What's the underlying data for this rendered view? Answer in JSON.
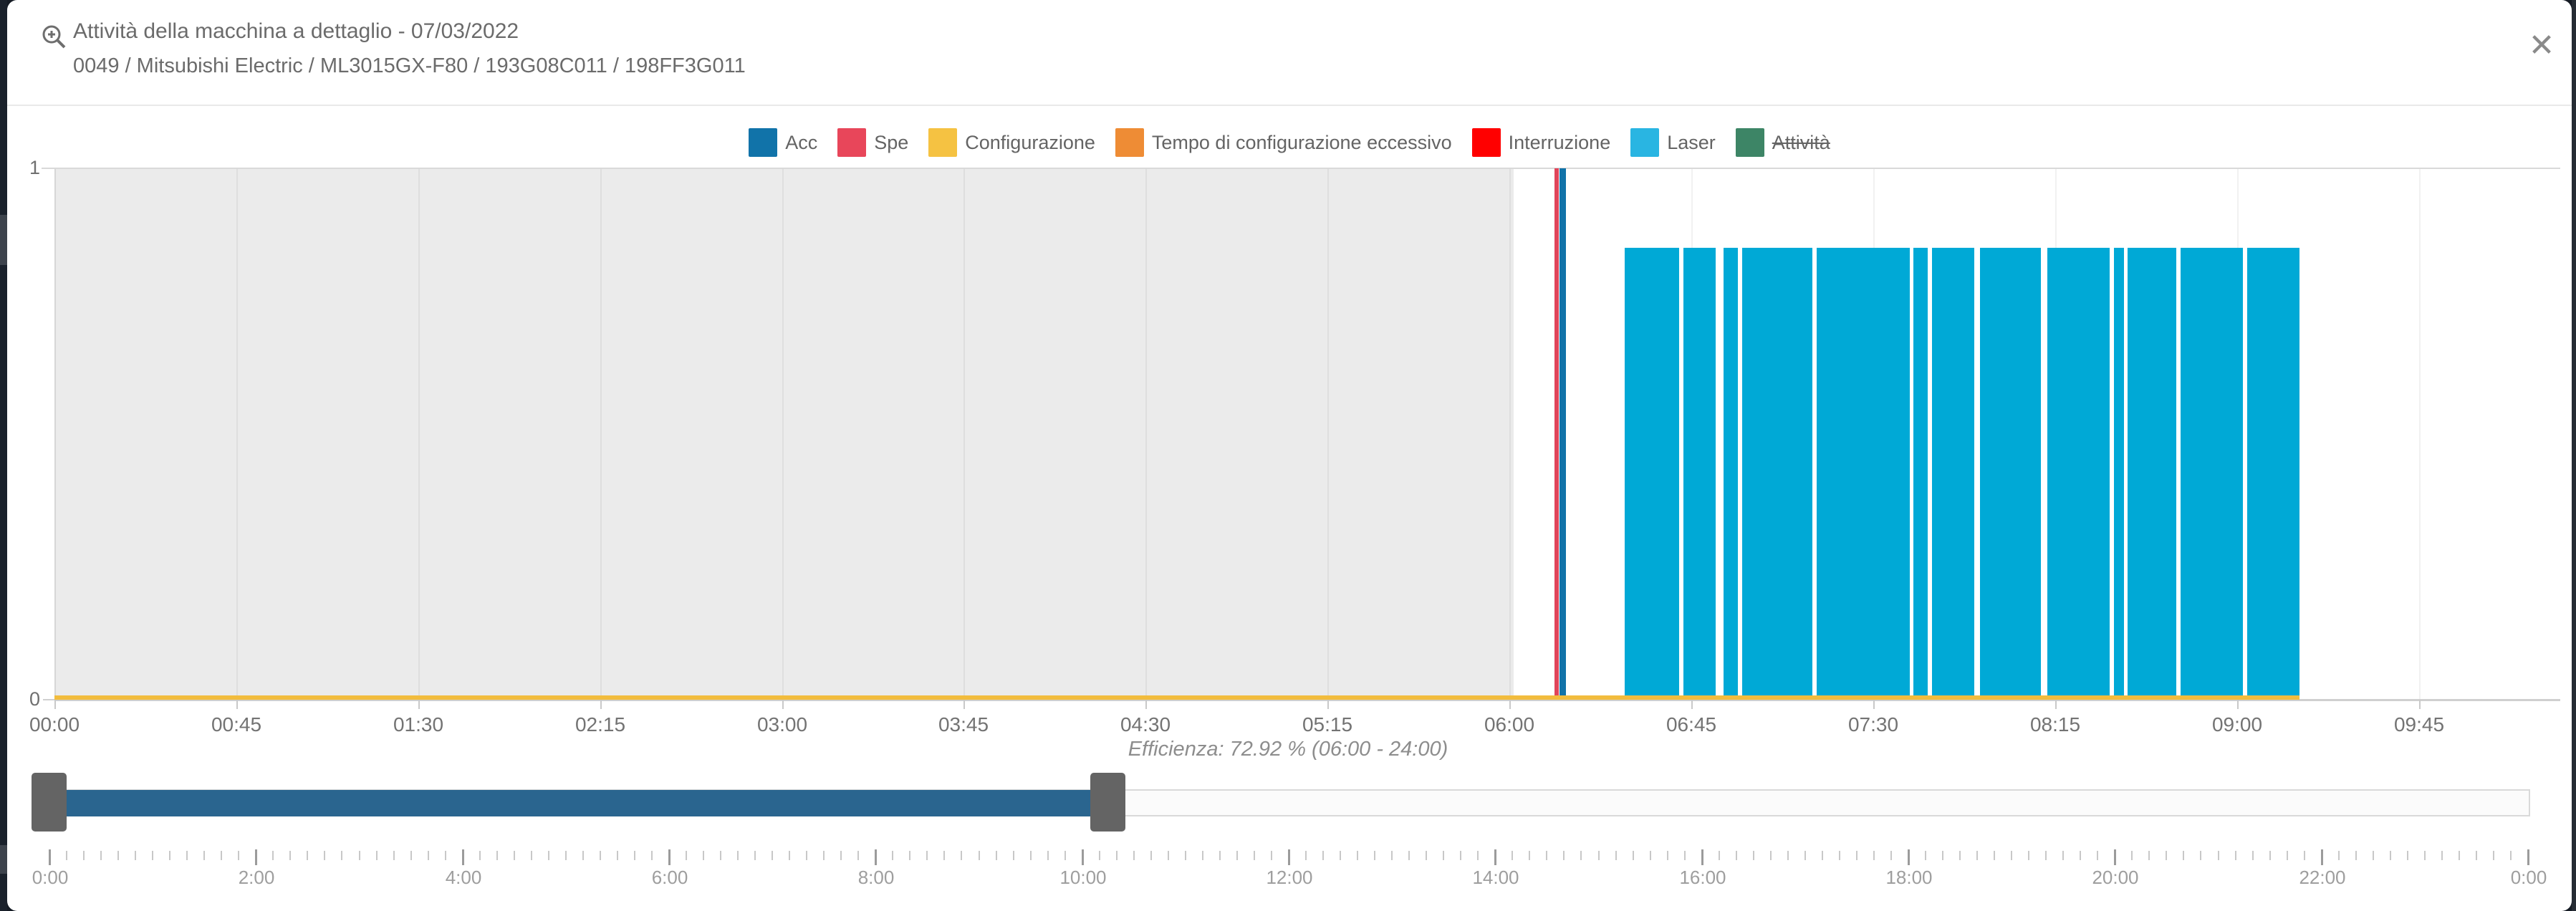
{
  "modal": {
    "title": "Attività della macchina a dettaglio - 07/03/2022",
    "subtitle": "0049 / Mitsubishi Electric / ML3015GX-F80 / 193G08C011 / 198FF3G011",
    "close_glyph": "✕",
    "zoom_icon": "zoom-in-icon"
  },
  "legend": {
    "items": [
      {
        "label": "Acc",
        "color": "#1173a9",
        "disabled": false
      },
      {
        "label": "Spe",
        "color": "#e8465a",
        "disabled": false
      },
      {
        "label": "Configurazione",
        "color": "#f5c242",
        "disabled": false
      },
      {
        "label": "Tempo di configurazione eccessivo",
        "color": "#ee8c35",
        "disabled": false
      },
      {
        "label": "Interruzione",
        "color": "#ff0000",
        "disabled": false
      },
      {
        "label": "Laser",
        "color": "#29b5e2",
        "disabled": false
      },
      {
        "label": "Attività",
        "color": "#3d8566",
        "disabled": true
      }
    ]
  },
  "chart_data": {
    "type": "bar",
    "title": "Attività della macchina a dettaglio - 07/03/2022",
    "caption": "Efficienza: 72.92 % (06:00 - 24:00)",
    "x_domain_minutes": [
      0,
      620
    ],
    "ylim": [
      0,
      1
    ],
    "y_ticks": [
      "1",
      "0"
    ],
    "shaded_region_minutes": [
      0,
      361
    ],
    "grid": true,
    "legend_position": "top-center",
    "x_ticks": [
      {
        "min": 0,
        "label": "00:00"
      },
      {
        "min": 45,
        "label": "00:45"
      },
      {
        "min": 90,
        "label": "01:30"
      },
      {
        "min": 135,
        "label": "02:15"
      },
      {
        "min": 180,
        "label": "03:00"
      },
      {
        "min": 225,
        "label": "03:45"
      },
      {
        "min": 270,
        "label": "04:30"
      },
      {
        "min": 315,
        "label": "05:15"
      },
      {
        "min": 360,
        "label": "06:00"
      },
      {
        "min": 405,
        "label": "06:45"
      },
      {
        "min": 450,
        "label": "07:30"
      },
      {
        "min": 495,
        "label": "08:15"
      },
      {
        "min": 540,
        "label": "09:00"
      },
      {
        "min": 585,
        "label": "09:45"
      }
    ],
    "series": [
      {
        "name": "Spe",
        "color": "#e0455a",
        "bar_height": 1,
        "intervals_min": [
          [
            371.2,
            372.3
          ]
        ]
      },
      {
        "name": "Acc",
        "color": "#1173a9",
        "bar_height": 1,
        "intervals_min": [
          [
            372.3,
            374
          ]
        ]
      },
      {
        "name": "Tempo di configurazione eccessivo",
        "color": "#ee8c35",
        "bar_height": 1,
        "intervals_min": []
      },
      {
        "name": "Interruzione",
        "color": "#ff0000",
        "bar_height": 1,
        "intervals_min": []
      },
      {
        "name": "Laser",
        "color": "#00a9d6",
        "bar_height": 0.85,
        "intervals_min": [
          [
            388.5,
            402
          ],
          [
            403,
            411
          ],
          [
            413,
            416.5
          ],
          [
            417.5,
            435
          ],
          [
            436,
            459
          ],
          [
            460,
            463.5
          ],
          [
            464.5,
            475
          ],
          [
            476.5,
            491.5
          ],
          [
            493,
            508.5
          ],
          [
            509.5,
            512
          ],
          [
            513,
            525
          ],
          [
            526,
            541.5
          ],
          [
            542.5,
            555.5
          ]
        ]
      },
      {
        "name": "Configurazione",
        "color": "#f2bc3d",
        "bar_height": 0.008,
        "intervals_min": [
          [
            0,
            555.5
          ]
        ]
      },
      {
        "name": "Attività",
        "color": "#3d8566",
        "bar_height": 1,
        "intervals_min": [],
        "disabled": true
      }
    ]
  },
  "slider": {
    "selection_start_min": 0,
    "selection_end_min": 605,
    "domain_minutes": [
      0,
      1440
    ],
    "selection_color": "#2a658f",
    "handle_color": "#646464",
    "ruler_labels": [
      {
        "min": 0,
        "label": "0:00"
      },
      {
        "min": 120,
        "label": "2:00"
      },
      {
        "min": 240,
        "label": "4:00"
      },
      {
        "min": 360,
        "label": "6:00"
      },
      {
        "min": 480,
        "label": "8:00"
      },
      {
        "min": 600,
        "label": "10:00"
      },
      {
        "min": 720,
        "label": "12:00"
      },
      {
        "min": 840,
        "label": "14:00"
      },
      {
        "min": 960,
        "label": "16:00"
      },
      {
        "min": 1080,
        "label": "18:00"
      },
      {
        "min": 1200,
        "label": "20:00"
      },
      {
        "min": 1320,
        "label": "22:00"
      },
      {
        "min": 1440,
        "label": "0:00"
      }
    ],
    "minor_tick_minutes": 10
  }
}
